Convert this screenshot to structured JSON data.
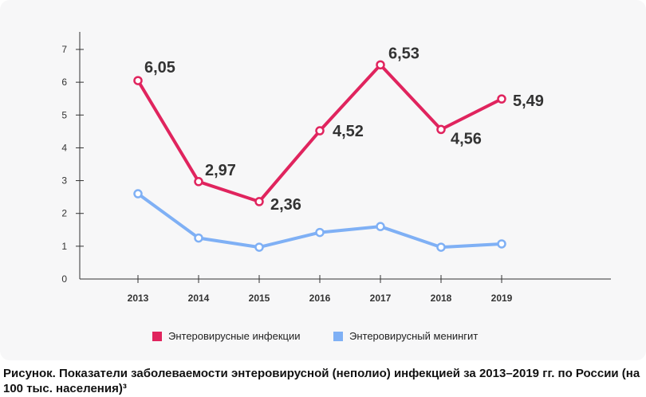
{
  "chart_data": {
    "type": "line",
    "categories": [
      "2013",
      "2014",
      "2015",
      "2016",
      "2017",
      "2018",
      "2019"
    ],
    "ylim": [
      0,
      7
    ],
    "yticks": [
      "0",
      "1",
      "2",
      "3",
      "4",
      "5",
      "6",
      "7"
    ],
    "series": [
      {
        "name": "Энтеровирусные инфекции",
        "color": "#e0245e",
        "values": [
          6.05,
          2.97,
          2.36,
          4.52,
          6.53,
          4.56,
          5.49
        ],
        "labels": [
          "6,05",
          "2,97",
          "2,36",
          "4,52",
          "6,53",
          "4,56",
          "5,49"
        ]
      },
      {
        "name": "Энтеровирусный менингит",
        "color": "#7fb0f5",
        "values": [
          2.6,
          1.25,
          0.97,
          1.42,
          1.6,
          0.97,
          1.07
        ]
      }
    ],
    "legend_position": "bottom-center",
    "grid": false
  },
  "caption": "Рисунок. Показатели заболеваемости энтеровирусной (неполио) инфекцией за 2013–2019 гг. по России (на 100 тыс. населения)³"
}
